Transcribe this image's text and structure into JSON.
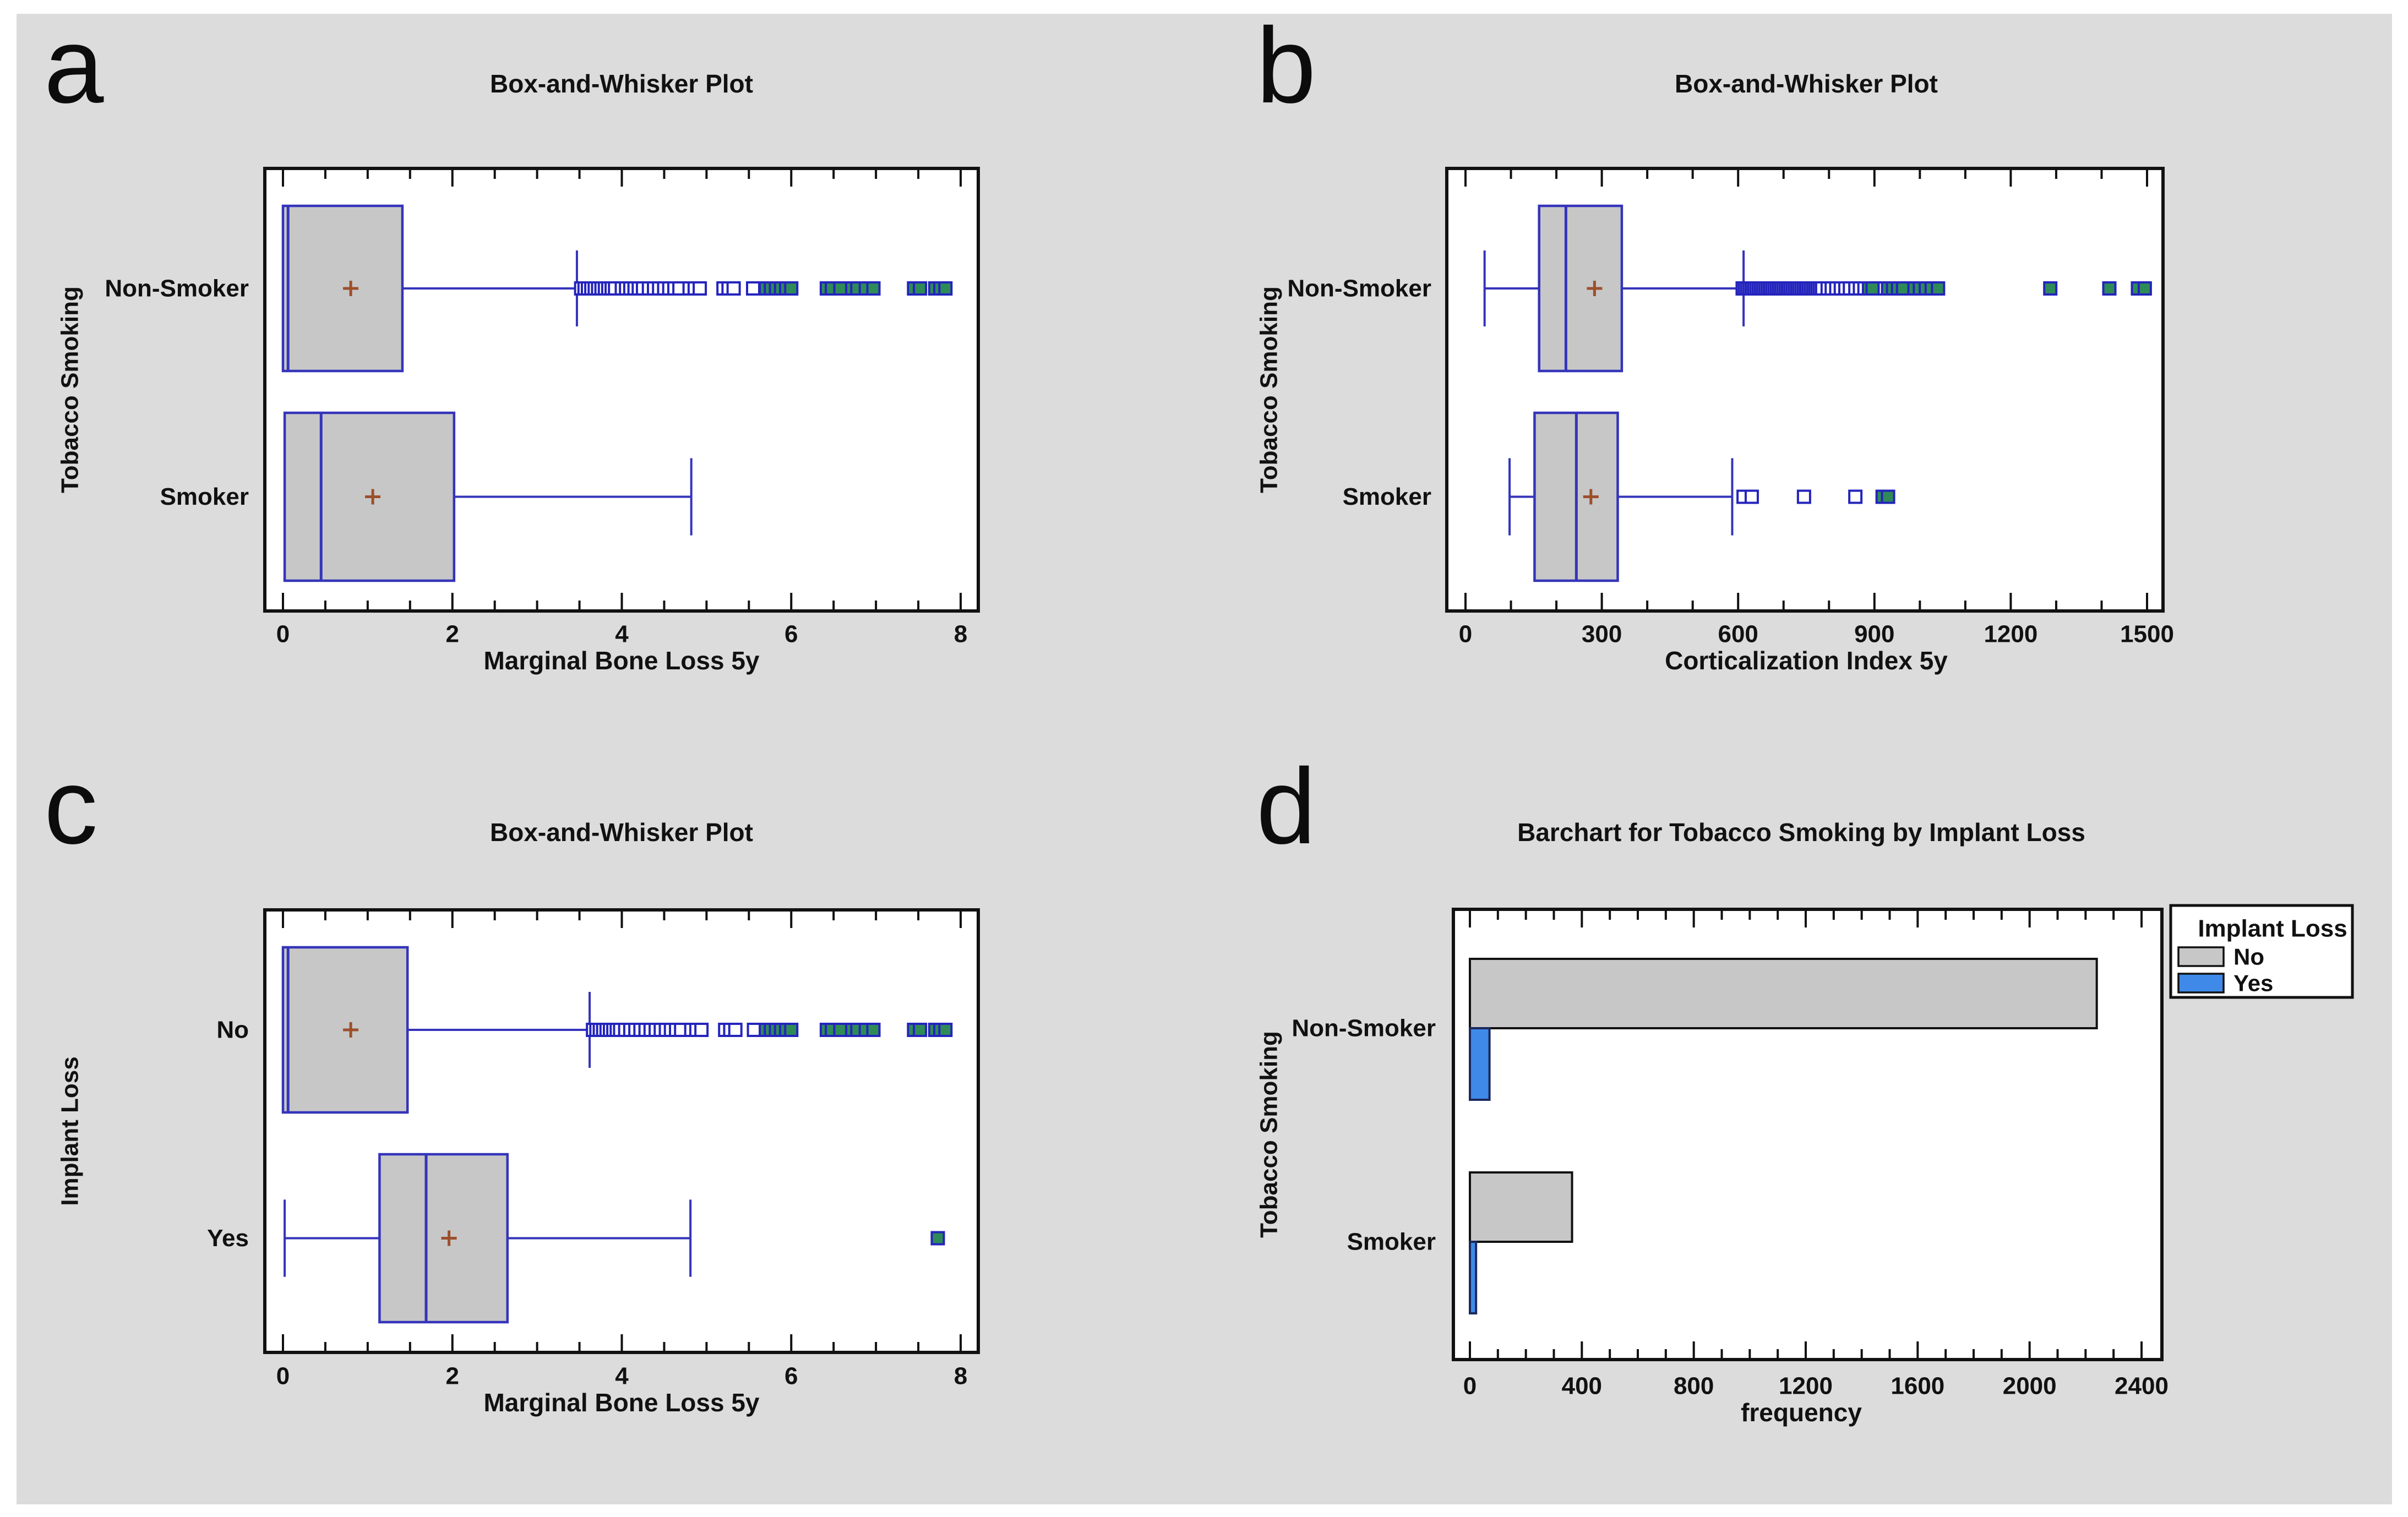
{
  "figure": {
    "background": "#ffffff",
    "canvas_color": "#dcdcdc",
    "text_color": "#111111"
  },
  "style": {
    "box_fill": "#c7c7c7",
    "box_border": "#3434bb",
    "whisker_color": "#3434bb",
    "median_color": "#3434bb",
    "mean_color": "#9c4f2a",
    "outlier_near_fill": "#ffffff",
    "outlier_near_border": "#2424bd",
    "outlier_far_fill": "#2e8b57",
    "outlier_far_border": "#2424bd",
    "bar_no_fill": "#c7c7c7",
    "bar_no_border": "#111111",
    "bar_yes_fill": "#3f8ae8",
    "bar_yes_border": "#1b2859",
    "axis_color": "#111111"
  },
  "chart_data": [
    {
      "letter": "a",
      "type": "box",
      "title": "Box-and-Whisker Plot",
      "xlabel": "Marginal Bone Loss 5y",
      "ylabel": "Tobacco Smoking",
      "x_min": 0,
      "x_max": 8,
      "x_major_step": 2,
      "x_minor_step": 0.5,
      "x_tick_labels": [
        "0",
        "2",
        "4",
        "6",
        "8"
      ],
      "series": [
        {
          "label": "Non-Smoker",
          "q1": 0,
          "median": 0.06,
          "q3": 1.41,
          "mean": 0.8,
          "whisker_low": 0,
          "whisker_high": 3.47,
          "show_left_whisker": false,
          "outliers_near": [
            3.52,
            3.56,
            3.6,
            3.64,
            3.68,
            3.72,
            3.76,
            3.8,
            3.84,
            3.88,
            3.92,
            4.0,
            4.05,
            4.1,
            4.15,
            4.2,
            4.25,
            4.32,
            4.38,
            4.44,
            4.5,
            4.56,
            4.62,
            4.68,
            4.8,
            4.86,
            4.92,
            5.2,
            5.26,
            5.32,
            5.55
          ],
          "outliers_far": [
            5.7,
            5.76,
            5.82,
            5.88,
            5.94,
            6.0,
            6.42,
            6.48,
            6.58,
            6.72,
            6.78,
            6.88,
            6.97,
            7.45,
            7.52,
            7.7,
            7.76,
            7.82
          ]
        },
        {
          "label": "Smoker",
          "q1": 0.02,
          "median": 0.45,
          "q3": 2.02,
          "mean": 1.06,
          "whisker_low": 0.02,
          "whisker_high": 4.82,
          "show_left_whisker": false,
          "outliers_near": [],
          "outliers_far": []
        }
      ]
    },
    {
      "letter": "b",
      "type": "box",
      "title": "Box-and-Whisker Plot",
      "xlabel": "Corticalization Index 5y",
      "ylabel": "Tobacco Smoking",
      "x_min": 0,
      "x_max": 1500,
      "x_major_step": 300,
      "x_minor_step": 100,
      "x_tick_labels": [
        "0",
        "300",
        "600",
        "900",
        "1200",
        "1500"
      ],
      "series": [
        {
          "label": "Non-Smoker",
          "q1": 162,
          "median": 221,
          "q3": 344,
          "mean": 284,
          "whisker_low": 42,
          "whisker_high": 612,
          "show_left_whisker": true,
          "outliers_near": [
            610,
            615,
            620,
            625,
            630,
            635,
            640,
            645,
            650,
            655,
            660,
            665,
            670,
            675,
            680,
            685,
            690,
            695,
            700,
            705,
            710,
            715,
            720,
            725,
            730,
            735,
            740,
            745,
            750,
            755,
            760,
            765,
            770,
            775,
            780,
            785,
            797,
            806,
            816,
            826,
            836,
            846,
            858,
            868,
            878,
            905
          ],
          "outliers_far": [
            888,
            896,
            930,
            941,
            952,
            963,
            988,
            1000,
            1013,
            1026,
            1040,
            1287,
            1417,
            1480,
            1495
          ]
        },
        {
          "label": "Smoker",
          "q1": 152,
          "median": 244,
          "q3": 335,
          "mean": 276,
          "whisker_low": 97,
          "whisker_high": 587,
          "show_left_whisker": true,
          "outliers_near": [
            612,
            630,
            745,
            858
          ],
          "outliers_far": [
            918,
            930
          ]
        }
      ]
    },
    {
      "letter": "c",
      "type": "box",
      "title": "Box-and-Whisker Plot",
      "xlabel": "Marginal Bone Loss 5y",
      "ylabel": "Implant Loss",
      "x_min": 0,
      "x_max": 8,
      "x_major_step": 2,
      "x_minor_step": 0.5,
      "x_tick_labels": [
        "0",
        "2",
        "4",
        "6",
        "8"
      ],
      "series": [
        {
          "label": "No",
          "q1": 0,
          "median": 0.06,
          "q3": 1.47,
          "mean": 0.8,
          "whisker_low": 0,
          "whisker_high": 3.62,
          "show_left_whisker": false,
          "outliers_near": [
            3.66,
            3.7,
            3.74,
            3.78,
            3.82,
            3.86,
            3.9,
            3.94,
            3.98,
            4.04,
            4.1,
            4.16,
            4.22,
            4.28,
            4.34,
            4.4,
            4.46,
            4.52,
            4.58,
            4.64,
            4.7,
            4.82,
            4.88,
            4.94,
            5.22,
            5.28,
            5.34,
            5.56
          ],
          "outliers_far": [
            5.7,
            5.76,
            5.82,
            5.88,
            5.94,
            6.0,
            6.42,
            6.48,
            6.58,
            6.72,
            6.78,
            6.88,
            6.97,
            7.45,
            7.52,
            7.7,
            7.76,
            7.82
          ]
        },
        {
          "label": "Yes",
          "q1": 1.14,
          "median": 1.69,
          "q3": 2.65,
          "mean": 1.96,
          "whisker_low": 0.02,
          "whisker_high": 4.81,
          "show_left_whisker": true,
          "outliers_near": [],
          "outliers_far": [
            7.73
          ]
        }
      ]
    },
    {
      "letter": "d",
      "type": "bar",
      "title": "Barchart for Tobacco Smoking by Implant Loss",
      "xlabel": "frequency",
      "ylabel": "Tobacco Smoking",
      "x_min": 0,
      "x_max": 2400,
      "x_major_step": 400,
      "x_minor_step": 100,
      "x_tick_labels": [
        "0",
        "400",
        "800",
        "1200",
        "1600",
        "2000",
        "2400"
      ],
      "legend": {
        "title": "Implant Loss",
        "items": [
          {
            "label": "No",
            "color_key": "bar_no_fill"
          },
          {
            "label": "Yes",
            "color_key": "bar_yes_fill"
          }
        ]
      },
      "series": [
        {
          "label": "Non-Smoker",
          "no": 2240,
          "yes": 70
        },
        {
          "label": "Smoker",
          "no": 365,
          "yes": 22
        }
      ]
    }
  ]
}
